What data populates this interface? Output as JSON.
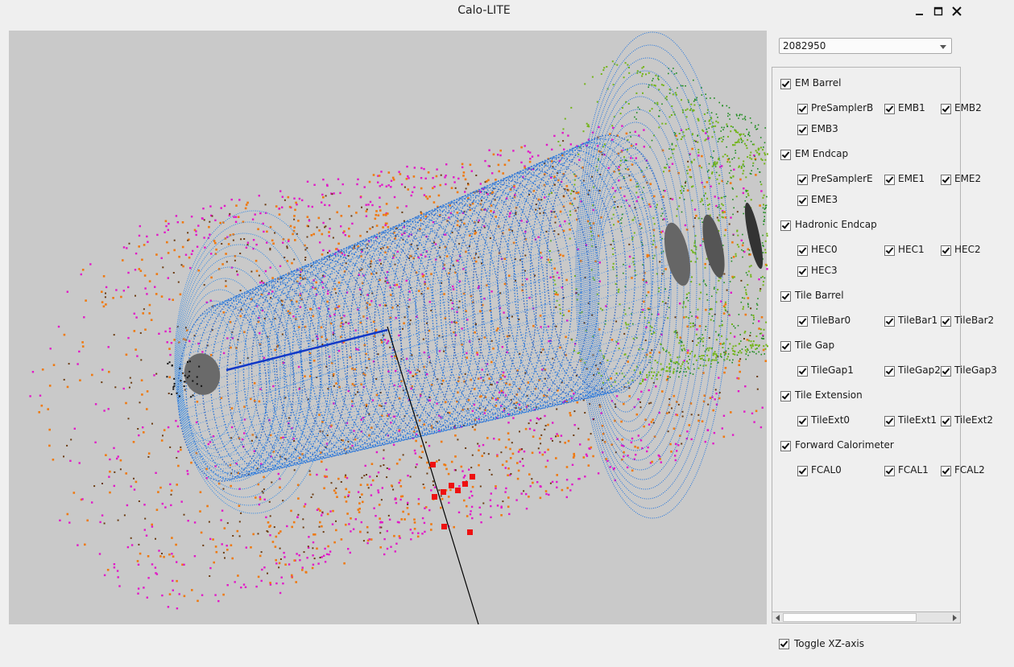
{
  "window": {
    "title": "Calo-LITE"
  },
  "event_selector": {
    "value": "2082950"
  },
  "groups": [
    {
      "label": "EM Barrel",
      "checked": true,
      "layers": [
        "PreSamplerB",
        "EMB1",
        "EMB2",
        "EMB3"
      ]
    },
    {
      "label": "EM Endcap",
      "checked": true,
      "layers": [
        "PreSamplerE",
        "EME1",
        "EME2",
        "EME3"
      ]
    },
    {
      "label": "Hadronic Endcap",
      "checked": true,
      "layers": [
        "HEC0",
        "HEC1",
        "HEC2",
        "HEC3"
      ]
    },
    {
      "label": "Tile Barrel",
      "checked": true,
      "layers": [
        "TileBar0",
        "TileBar1",
        "TileBar2"
      ]
    },
    {
      "label": "Tile Gap",
      "checked": true,
      "layers": [
        "TileGap1",
        "TileGap2",
        "TileGap3"
      ]
    },
    {
      "label": "Tile Extension",
      "checked": true,
      "layers": [
        "TileExt0",
        "TileExt1",
        "TileExt2"
      ]
    },
    {
      "label": "Forward Calorimeter",
      "checked": true,
      "layers": [
        "FCAL0",
        "FCAL1",
        "FCAL2"
      ]
    }
  ],
  "toggle_xz": {
    "label": "Toggle XZ-axis",
    "checked": true
  },
  "colors": {
    "viewport_bg": "#c9c9c9",
    "em_barrel": "#0a64d8",
    "tile": "#ee7a12",
    "gap": "#e218c8",
    "hec": "#72b418",
    "fcal": "#1c8c1c",
    "cluster": "#ee1010"
  }
}
